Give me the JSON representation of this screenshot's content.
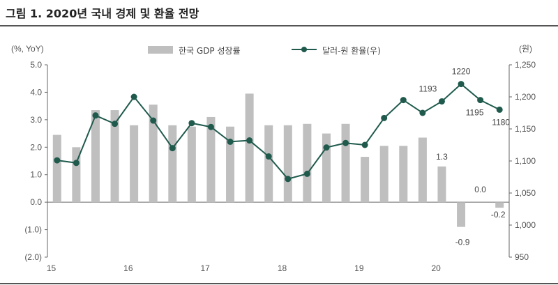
{
  "title": "그림 1. 2020년 국내 경제 및 환율 전망",
  "chart_data": {
    "type": "bar",
    "title": "그림 1. 2020년 국내 경제 및 환율 전망",
    "left_axis": {
      "unit_label": "(%, YoY)",
      "ylim": [
        -2.0,
        5.0
      ],
      "tick_labels": [
        "5.0",
        "4.0",
        "3.0",
        "2.0",
        "1.0",
        "0.0",
        "(1.0)",
        "(2.0)"
      ]
    },
    "right_axis": {
      "unit_label": "(원)",
      "ylim": [
        950,
        1250
      ],
      "tick_labels": [
        "1,250",
        "1,200",
        "1,150",
        "1,100",
        "1,050",
        "1,000",
        "950"
      ]
    },
    "x_tick_labels": [
      "15",
      "16",
      "17",
      "18",
      "19",
      "20"
    ],
    "series": [
      {
        "name": "한국 GDP 성장률",
        "type": "bar",
        "axis": "left",
        "color": "#bfbfbf",
        "values": [
          2.45,
          2.0,
          3.35,
          3.35,
          2.8,
          3.55,
          2.8,
          2.75,
          3.1,
          2.75,
          3.95,
          2.8,
          2.8,
          2.85,
          2.5,
          2.85,
          1.65,
          2.05,
          2.05,
          2.35,
          1.3,
          -0.9,
          0.0,
          -0.2
        ]
      },
      {
        "name": "달러-원 환율(우)",
        "type": "line",
        "axis": "right",
        "color": "#1f5a4d",
        "values": [
          1101,
          1097,
          1171,
          1158,
          1200,
          1163,
          1120,
          1159,
          1153,
          1130,
          1132,
          1107,
          1072,
          1080,
          1121,
          1128,
          1125,
          1167,
          1195,
          1175,
          1193,
          1220,
          1195,
          1180
        ]
      }
    ],
    "data_labels": [
      {
        "text": "1.3",
        "series": "한국 GDP 성장률",
        "index": 20
      },
      {
        "text": "-0.9",
        "series": "한국 GDP 성장률",
        "index": 21
      },
      {
        "text": "0.0",
        "series": "한국 GDP 성장률",
        "index": 22
      },
      {
        "text": "-0.2",
        "series": "한국 GDP 성장률",
        "index": 23
      },
      {
        "text": "1193",
        "series": "달러-원 환율(우)",
        "index": 20
      },
      {
        "text": "1220",
        "series": "달러-원 환율(우)",
        "index": 21
      },
      {
        "text": "1195",
        "series": "달러-원 환율(우)",
        "index": 22
      },
      {
        "text": "1180",
        "series": "달러-원 환율(우)",
        "index": 23
      }
    ]
  }
}
